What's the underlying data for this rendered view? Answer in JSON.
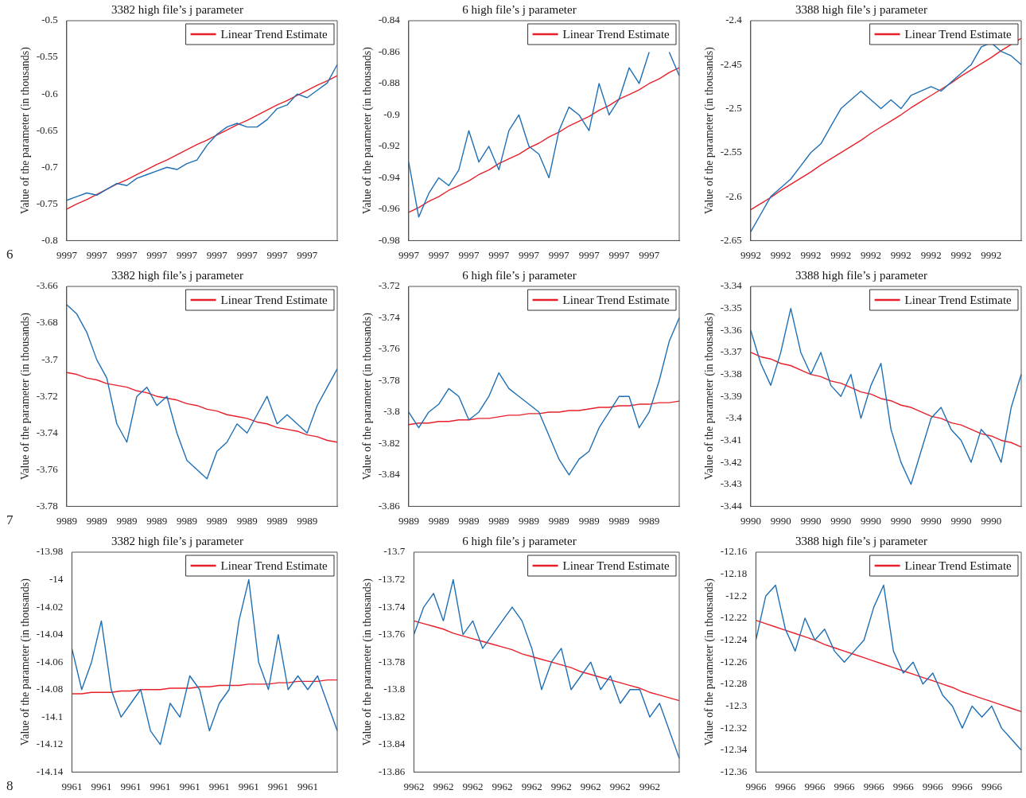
{
  "chart_data": [
    {
      "type": "line",
      "title": "3382 high file’s j parameter",
      "ylabel": "Value of the parameter (in thousands)",
      "annotations": [
        "6"
      ],
      "legend": "top right",
      "categories": [
        "9997",
        null,
        null,
        "9997",
        null,
        null,
        "9997",
        null,
        null,
        "9997",
        null,
        null,
        "9997",
        null,
        null,
        "9997",
        null,
        null,
        "9997",
        null,
        null,
        "9997",
        null,
        null,
        "9997",
        null,
        null,
        null
      ],
      "ylim": [
        -0.8,
        -0.5
      ],
      "yticks": [
        -0.8,
        -0.75,
        -0.7,
        -0.65,
        -0.6,
        -0.55,
        -0.5
      ],
      "series": [
        {
          "color": "#1f6fb4",
          "values": [
            -0.745,
            -0.74,
            -0.735,
            -0.738,
            -0.73,
            -0.722,
            -0.725,
            -0.715,
            -0.71,
            -0.705,
            -0.7,
            -0.703,
            -0.695,
            -0.69,
            -0.67,
            -0.655,
            -0.645,
            -0.64,
            -0.645,
            -0.645,
            -0.635,
            -0.62,
            -0.615,
            -0.6,
            -0.605,
            -0.595,
            -0.585,
            -0.56
          ]
        },
        {
          "name": "Linear Trend Estimate",
          "color": "#e8202a",
          "values": [
            -0.757,
            -0.75,
            -0.744,
            -0.737,
            -0.73,
            -0.723,
            -0.717,
            -0.71,
            -0.703,
            -0.696,
            -0.69,
            -0.683,
            -0.676,
            -0.669,
            -0.663,
            -0.656,
            -0.649,
            -0.642,
            -0.636,
            -0.629,
            -0.622,
            -0.615,
            -0.609,
            -0.602,
            -0.595,
            -0.588,
            -0.582,
            -0.575
          ]
        }
      ]
    },
    {
      "type": "line",
      "title": "6 high file’s j parameter",
      "ylabel": "Value of the parameter (in thousands)",
      "legend": "top right",
      "categories": [
        "9997",
        null,
        null,
        "9997",
        null,
        null,
        "9997",
        null,
        null,
        "9997",
        null,
        null,
        "9997",
        null,
        null,
        "9997",
        null,
        null,
        "9997",
        null,
        null,
        "9997",
        null,
        null,
        "9997",
        null,
        null,
        null
      ],
      "ylim": [
        -0.98,
        -0.84
      ],
      "yticks": [
        -0.98,
        -0.96,
        -0.94,
        -0.92,
        -0.9,
        -0.88,
        -0.86,
        -0.84
      ],
      "series": [
        {
          "color": "#1f6fb4",
          "values": [
            -0.93,
            -0.965,
            -0.95,
            -0.94,
            -0.945,
            -0.935,
            -0.91,
            -0.93,
            -0.92,
            -0.935,
            -0.91,
            -0.9,
            -0.92,
            -0.925,
            -0.94,
            -0.91,
            -0.895,
            -0.9,
            -0.91,
            -0.88,
            -0.9,
            -0.89,
            -0.87,
            -0.88,
            -0.86,
            null,
            -0.86,
            -0.875
          ]
        },
        {
          "name": "Linear Trend Estimate",
          "color": "#e8202a",
          "values": [
            -0.962,
            -0.959,
            -0.955,
            -0.952,
            -0.948,
            -0.945,
            -0.942,
            -0.938,
            -0.935,
            -0.931,
            -0.928,
            -0.925,
            -0.921,
            -0.918,
            -0.914,
            -0.911,
            -0.907,
            -0.904,
            -0.901,
            -0.897,
            -0.894,
            -0.89,
            -0.887,
            -0.884,
            -0.88,
            -0.877,
            -0.873,
            -0.87
          ]
        }
      ]
    },
    {
      "type": "line",
      "title": "3388 high file’s j parameter",
      "ylabel": "Value of the parameter (in thousands)",
      "legend": "top right",
      "categories": [
        "9992",
        null,
        null,
        "9992",
        null,
        null,
        "9992",
        null,
        null,
        "9992",
        null,
        null,
        "9992",
        null,
        null,
        "9992",
        null,
        null,
        "9992",
        null,
        null,
        "9992",
        null,
        null,
        "9992",
        null,
        null,
        null
      ],
      "ylim": [
        -2.65,
        -2.4
      ],
      "yticks": [
        -2.65,
        -2.6,
        -2.55,
        -2.5,
        -2.45,
        -2.4
      ],
      "series": [
        {
          "color": "#1f6fb4",
          "values": [
            -2.64,
            -2.62,
            -2.6,
            -2.59,
            -2.58,
            -2.565,
            -2.55,
            -2.54,
            -2.52,
            -2.5,
            -2.49,
            -2.48,
            -2.49,
            -2.5,
            -2.49,
            -2.5,
            -2.485,
            -2.48,
            -2.475,
            -2.48,
            -2.47,
            -2.46,
            -2.45,
            -2.43,
            -2.425,
            -2.435,
            -2.44,
            -2.45
          ]
        },
        {
          "name": "Linear Trend Estimate",
          "color": "#e8202a",
          "values": [
            -2.615,
            -2.608,
            -2.601,
            -2.593,
            -2.586,
            -2.579,
            -2.572,
            -2.564,
            -2.557,
            -2.55,
            -2.543,
            -2.536,
            -2.528,
            -2.521,
            -2.514,
            -2.507,
            -2.499,
            -2.492,
            -2.485,
            -2.478,
            -2.471,
            -2.463,
            -2.456,
            -2.449,
            -2.442,
            -2.434,
            -2.427,
            -2.42
          ]
        }
      ]
    },
    {
      "type": "line",
      "title": "3382 high file’s j parameter",
      "ylabel": "Value of the parameter (in thousands)",
      "annotations": [
        "7"
      ],
      "legend": "top right",
      "categories": [
        "9989",
        null,
        null,
        "9989",
        null,
        null,
        "9989",
        null,
        null,
        "9989",
        null,
        null,
        "9989",
        null,
        null,
        "9989",
        null,
        null,
        "9989",
        null,
        null,
        "9989",
        null,
        null,
        "9989",
        null,
        null,
        null
      ],
      "ylim": [
        -3.78,
        -3.66
      ],
      "yticks": [
        -3.78,
        -3.76,
        -3.74,
        -3.72,
        -3.7,
        -3.68,
        -3.66
      ],
      "series": [
        {
          "color": "#1f6fb4",
          "values": [
            -3.67,
            -3.675,
            -3.685,
            -3.7,
            -3.71,
            -3.735,
            -3.745,
            -3.72,
            -3.715,
            -3.725,
            -3.72,
            -3.74,
            -3.755,
            -3.76,
            -3.765,
            -3.75,
            -3.745,
            -3.735,
            -3.74,
            -3.73,
            -3.72,
            -3.735,
            -3.73,
            -3.735,
            -3.74,
            -3.725,
            -3.715,
            -3.705
          ]
        },
        {
          "name": "Linear Trend Estimate",
          "color": "#e8202a",
          "values": [
            -3.707,
            -3.708,
            -3.71,
            -3.711,
            -3.713,
            -3.714,
            -3.715,
            -3.717,
            -3.718,
            -3.72,
            -3.721,
            -3.722,
            -3.724,
            -3.725,
            -3.727,
            -3.728,
            -3.73,
            -3.731,
            -3.732,
            -3.734,
            -3.735,
            -3.737,
            -3.738,
            -3.739,
            -3.741,
            -3.742,
            -3.744,
            -3.745
          ]
        }
      ]
    },
    {
      "type": "line",
      "title": "6 high file’s j parameter",
      "ylabel": "Value of the parameter (in thousands)",
      "legend": "top right",
      "categories": [
        "9989",
        null,
        null,
        "9989",
        null,
        null,
        "9989",
        null,
        null,
        "9989",
        null,
        null,
        "9989",
        null,
        null,
        "9989",
        null,
        null,
        "9989",
        null,
        null,
        "9989",
        null,
        null,
        "9989",
        null,
        null,
        null
      ],
      "ylim": [
        -3.86,
        -3.72
      ],
      "yticks": [
        -3.86,
        -3.84,
        -3.82,
        -3.8,
        -3.78,
        -3.76,
        -3.74,
        -3.72
      ],
      "series": [
        {
          "color": "#1f6fb4",
          "values": [
            -3.8,
            -3.81,
            -3.8,
            -3.795,
            -3.785,
            -3.79,
            -3.805,
            -3.8,
            -3.79,
            -3.775,
            -3.785,
            -3.79,
            -3.795,
            -3.8,
            -3.815,
            -3.83,
            -3.84,
            -3.83,
            -3.825,
            -3.81,
            -3.8,
            -3.79,
            -3.79,
            -3.81,
            -3.8,
            -3.78,
            -3.755,
            -3.74
          ]
        },
        {
          "name": "Linear Trend Estimate",
          "color": "#e8202a",
          "values": [
            -3.808,
            -3.807,
            -3.807,
            -3.806,
            -3.806,
            -3.805,
            -3.805,
            -3.804,
            -3.804,
            -3.803,
            -3.802,
            -3.802,
            -3.801,
            -3.801,
            -3.8,
            -3.8,
            -3.799,
            -3.799,
            -3.798,
            -3.797,
            -3.797,
            -3.796,
            -3.796,
            -3.795,
            -3.795,
            -3.794,
            -3.794,
            -3.793
          ]
        }
      ]
    },
    {
      "type": "line",
      "title": "3388 high file’s j parameter",
      "ylabel": "Value of the parameter (in thousands)",
      "legend": "top right",
      "categories": [
        "9990",
        null,
        null,
        "9990",
        null,
        null,
        "9990",
        null,
        null,
        "9990",
        null,
        null,
        "9990",
        null,
        null,
        "9990",
        null,
        null,
        "9990",
        null,
        null,
        "9990",
        null,
        null,
        "9990",
        null,
        null,
        null
      ],
      "ylim": [
        -3.44,
        -3.34
      ],
      "yticks": [
        -3.44,
        -3.43,
        -3.42,
        -3.41,
        -3.4,
        -3.39,
        -3.38,
        -3.37,
        -3.36,
        -3.35,
        -3.34
      ],
      "series": [
        {
          "color": "#1f6fb4",
          "values": [
            -3.36,
            -3.375,
            -3.385,
            -3.37,
            -3.35,
            -3.37,
            -3.38,
            -3.37,
            -3.385,
            -3.39,
            -3.38,
            -3.4,
            -3.385,
            -3.375,
            -3.405,
            -3.42,
            -3.43,
            -3.415,
            -3.4,
            -3.395,
            -3.405,
            -3.41,
            -3.42,
            -3.405,
            -3.41,
            -3.42,
            -3.395,
            -3.38
          ]
        },
        {
          "name": "Linear Trend Estimate",
          "color": "#e8202a",
          "values": [
            -3.37,
            -3.372,
            -3.373,
            -3.375,
            -3.376,
            -3.378,
            -3.38,
            -3.381,
            -3.383,
            -3.384,
            -3.386,
            -3.388,
            -3.389,
            -3.391,
            -3.392,
            -3.394,
            -3.395,
            -3.397,
            -3.399,
            -3.4,
            -3.402,
            -3.403,
            -3.405,
            -3.407,
            -3.408,
            -3.41,
            -3.411,
            -3.413
          ]
        }
      ]
    },
    {
      "type": "line",
      "title": "3382 high file’s j parameter",
      "ylabel": "Value of the parameter (in thousands)",
      "annotations": [
        "8"
      ],
      "legend": "top right",
      "categories": [
        "9961",
        null,
        null,
        "9961",
        null,
        null,
        "9961",
        null,
        null,
        "9961",
        null,
        null,
        "9961",
        null,
        null,
        "9961",
        null,
        null,
        "9961",
        null,
        null,
        "9961",
        null,
        null,
        "9961",
        null,
        null,
        null
      ],
      "ylim": [
        -14.14,
        -13.98
      ],
      "yticks": [
        -14.14,
        -14.12,
        -14.1,
        -14.08,
        -14.06,
        -14.04,
        -14.02,
        -14,
        -13.98
      ],
      "series": [
        {
          "color": "#1f6fb4",
          "values": [
            -14.05,
            -14.08,
            -14.06,
            -14.03,
            -14.08,
            -14.1,
            -14.09,
            -14.08,
            -14.11,
            -14.12,
            -14.09,
            -14.1,
            -14.07,
            -14.08,
            -14.11,
            -14.09,
            -14.08,
            -14.03,
            -14,
            -14.06,
            -14.08,
            -14.04,
            -14.08,
            -14.07,
            -14.08,
            -14.07,
            -14.09,
            -14.11
          ]
        },
        {
          "name": "Linear Trend Estimate",
          "color": "#e8202a",
          "values": [
            -14.083,
            -14.083,
            -14.082,
            -14.082,
            -14.082,
            -14.081,
            -14.081,
            -14.08,
            -14.08,
            -14.08,
            -14.079,
            -14.079,
            -14.079,
            -14.078,
            -14.078,
            -14.077,
            -14.077,
            -14.077,
            -14.076,
            -14.076,
            -14.076,
            -14.075,
            -14.075,
            -14.074,
            -14.074,
            -14.074,
            -14.073,
            -14.073
          ]
        }
      ]
    },
    {
      "type": "line",
      "title": "6 high file’s j parameter",
      "ylabel": "Value of the parameter (in thousands)",
      "legend": "top right",
      "categories": [
        "9962",
        null,
        null,
        "9962",
        null,
        null,
        "9962",
        null,
        null,
        "9962",
        null,
        null,
        "9962",
        null,
        null,
        "9962",
        null,
        null,
        "9962",
        null,
        null,
        "9962",
        null,
        null,
        "9962",
        null,
        null,
        null
      ],
      "ylim": [
        -13.86,
        -13.7
      ],
      "yticks": [
        -13.86,
        -13.84,
        -13.82,
        -13.8,
        -13.78,
        -13.76,
        -13.74,
        -13.72,
        -13.7
      ],
      "series": [
        {
          "color": "#1f6fb4",
          "values": [
            -13.76,
            -13.74,
            -13.73,
            -13.75,
            -13.72,
            -13.76,
            -13.75,
            -13.77,
            -13.76,
            -13.75,
            -13.74,
            -13.75,
            -13.77,
            -13.8,
            -13.78,
            -13.77,
            -13.8,
            -13.79,
            -13.78,
            -13.8,
            -13.79,
            -13.81,
            -13.8,
            -13.8,
            -13.82,
            -13.81,
            -13.83,
            -13.85
          ]
        },
        {
          "name": "Linear Trend Estimate",
          "color": "#e8202a",
          "values": [
            -13.75,
            -13.752,
            -13.754,
            -13.756,
            -13.759,
            -13.761,
            -13.763,
            -13.765,
            -13.767,
            -13.769,
            -13.771,
            -13.774,
            -13.776,
            -13.778,
            -13.78,
            -13.782,
            -13.784,
            -13.787,
            -13.789,
            -13.791,
            -13.793,
            -13.795,
            -13.797,
            -13.799,
            -13.802,
            -13.804,
            -13.806,
            -13.808
          ]
        }
      ]
    },
    {
      "type": "line",
      "title": "3388 high file’s j parameter",
      "ylabel": "Value of the parameter (in thousands)",
      "legend": "top right",
      "categories": [
        "9966",
        null,
        null,
        "9966",
        null,
        null,
        "9966",
        null,
        null,
        "9966",
        null,
        null,
        "9966",
        null,
        null,
        "9966",
        null,
        null,
        "9966",
        null,
        null,
        "9966",
        null,
        null,
        "9966",
        null,
        null,
        null
      ],
      "ylim": [
        -12.36,
        -12.16
      ],
      "yticks": [
        -12.36,
        -12.34,
        -12.32,
        -12.3,
        -12.28,
        -12.26,
        -12.24,
        -12.22,
        -12.2,
        -12.18,
        -12.16
      ],
      "series": [
        {
          "color": "#1f6fb4",
          "values": [
            -12.24,
            -12.2,
            -12.19,
            -12.23,
            -12.25,
            -12.22,
            -12.24,
            -12.23,
            -12.25,
            -12.26,
            -12.25,
            -12.24,
            -12.21,
            -12.19,
            -12.25,
            -12.27,
            -12.26,
            -12.28,
            -12.27,
            -12.29,
            -12.3,
            -12.32,
            -12.3,
            -12.31,
            -12.3,
            -12.32,
            -12.33,
            -12.34
          ]
        },
        {
          "name": "Linear Trend Estimate",
          "color": "#e8202a",
          "values": [
            -12.222,
            -12.225,
            -12.228,
            -12.231,
            -12.234,
            -12.237,
            -12.24,
            -12.244,
            -12.247,
            -12.25,
            -12.253,
            -12.256,
            -12.259,
            -12.262,
            -12.265,
            -12.268,
            -12.271,
            -12.274,
            -12.277,
            -12.28,
            -12.283,
            -12.287,
            -12.29,
            -12.293,
            -12.296,
            -12.299,
            -12.302,
            -12.305
          ]
        }
      ]
    }
  ]
}
